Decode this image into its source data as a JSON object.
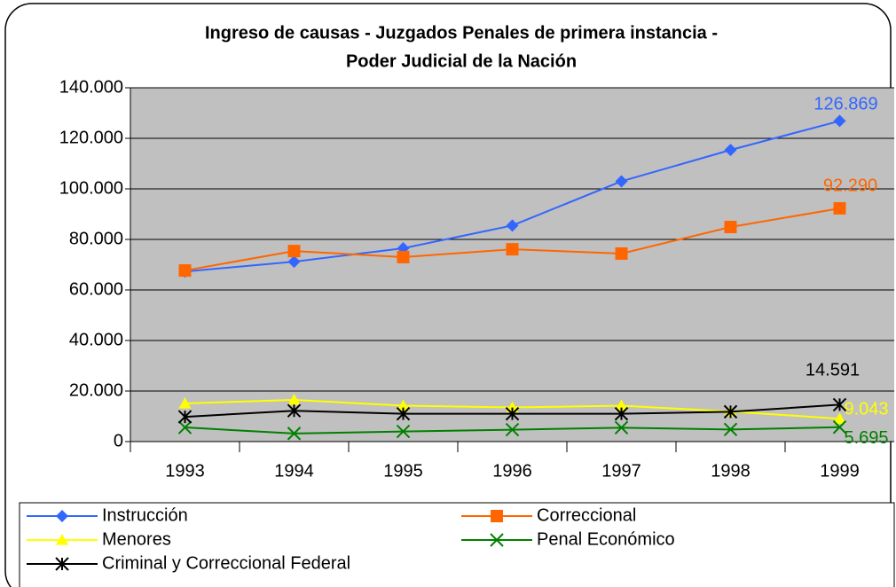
{
  "chart_data": {
    "type": "line",
    "title": [
      "Ingreso de causas - Juzgados Penales de primera instancia -",
      "Poder Judicial de la Nación"
    ],
    "categories": [
      "1993",
      "1994",
      "1995",
      "1996",
      "1997",
      "1998",
      "1999"
    ],
    "ylim": [
      0,
      140000
    ],
    "yticks": [
      0,
      {
        "value": 20000,
        "label": "20.000"
      },
      {
        "value": 40000,
        "label": "40.000"
      },
      {
        "value": 60000,
        "label": "60.000"
      },
      {
        "value": 80000,
        "label": "80.000"
      },
      {
        "value": 100000,
        "label": "100.000"
      },
      {
        "value": 120000,
        "label": "120.000"
      },
      {
        "value": 140000,
        "label": "140.000"
      }
    ],
    "grid": true,
    "legend": "bottom",
    "series": [
      {
        "name": "Instrucción",
        "color": "#3366ff",
        "marker": "diamond",
        "values": [
          67300,
          71200,
          76500,
          85500,
          103000,
          115400,
          126869
        ],
        "value_labels": [
          null,
          null,
          null,
          null,
          null,
          null,
          "126.869"
        ]
      },
      {
        "name": "Correccional",
        "color": "#ff6600",
        "marker": "square",
        "values": [
          67700,
          75400,
          73000,
          76100,
          74400,
          84900,
          92290
        ],
        "value_labels": [
          null,
          null,
          null,
          null,
          null,
          null,
          "92.290"
        ]
      },
      {
        "name": "Menores",
        "color": "#ffff00",
        "marker": "triangle",
        "values": [
          15100,
          16500,
          14200,
          13500,
          14200,
          11900,
          9043
        ],
        "value_labels": [
          null,
          null,
          null,
          null,
          null,
          null,
          "9.043"
        ]
      },
      {
        "name": "Penal Económico",
        "color": "#008000",
        "marker": "x",
        "values": [
          5600,
          3200,
          4000,
          4700,
          5500,
          4800,
          5695
        ],
        "value_labels": [
          null,
          null,
          null,
          null,
          null,
          null,
          "5.695"
        ]
      },
      {
        "name": "Criminal y Correccional Federal",
        "color": "#000000",
        "marker": "star",
        "values": [
          9800,
          12200,
          11000,
          11000,
          11000,
          11800,
          14591
        ],
        "value_labels": [
          null,
          null,
          null,
          null,
          null,
          null,
          "14.591"
        ]
      }
    ]
  }
}
